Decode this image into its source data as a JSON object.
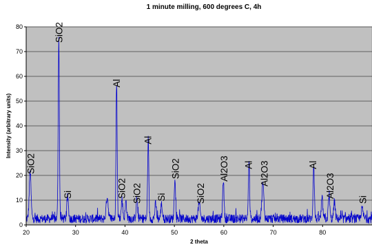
{
  "chart_data": {
    "type": "line",
    "title": "1 minute milling, 600 degrees C, 4h",
    "xlabel": "2 theta",
    "ylabel": "Intensity (arbitrary units)",
    "xlim": [
      20,
      90
    ],
    "ylim": [
      0,
      80
    ],
    "xticks": [
      20,
      30,
      40,
      50,
      60,
      70,
      80
    ],
    "yticks": [
      0,
      10,
      20,
      30,
      40,
      50,
      60,
      70,
      80
    ],
    "grid": "horizontal",
    "plot_background": "#c0c0c0",
    "line_color": "#0000cc",
    "baseline": 2.5,
    "peaks": [
      {
        "x": 20.8,
        "y": 19,
        "w": 0.18
      },
      {
        "x": 26.6,
        "y": 73,
        "w": 0.12
      },
      {
        "x": 28.4,
        "y": 9,
        "w": 0.15
      },
      {
        "x": 36.4,
        "y": 9,
        "w": 0.2
      },
      {
        "x": 38.3,
        "y": 55,
        "w": 0.12
      },
      {
        "x": 39.4,
        "y": 8,
        "w": 0.15
      },
      {
        "x": 40.2,
        "y": 7,
        "w": 0.15
      },
      {
        "x": 42.4,
        "y": 8,
        "w": 0.15
      },
      {
        "x": 44.7,
        "y": 32,
        "w": 0.12
      },
      {
        "x": 46.2,
        "y": 6,
        "w": 0.15
      },
      {
        "x": 47.4,
        "y": 6,
        "w": 0.15
      },
      {
        "x": 50.1,
        "y": 17,
        "w": 0.13
      },
      {
        "x": 55.0,
        "y": 6,
        "w": 0.2
      },
      {
        "x": 59.9,
        "y": 16,
        "w": 0.14
      },
      {
        "x": 65.1,
        "y": 22,
        "w": 0.13
      },
      {
        "x": 67.9,
        "y": 14,
        "w": 0.2
      },
      {
        "x": 78.2,
        "y": 22,
        "w": 0.13
      },
      {
        "x": 79.9,
        "y": 8,
        "w": 0.15
      },
      {
        "x": 81.3,
        "y": 9,
        "w": 0.15
      },
      {
        "x": 82.4,
        "y": 7,
        "w": 0.15
      },
      {
        "x": 88.0,
        "y": 4,
        "w": 0.2
      }
    ],
    "annotations": [
      {
        "text": "SiO2",
        "x": 20.9,
        "y": 20
      },
      {
        "text": "SiO2",
        "x": 26.6,
        "y": 73
      },
      {
        "text": "Si",
        "x": 28.4,
        "y": 10
      },
      {
        "text": "Al",
        "x": 38.3,
        "y": 55
      },
      {
        "text": "SiO2",
        "x": 39.3,
        "y": 10
      },
      {
        "text": "SiO2",
        "x": 42.4,
        "y": 8
      },
      {
        "text": "Al",
        "x": 44.6,
        "y": 32
      },
      {
        "text": "Si",
        "x": 47.3,
        "y": 9
      },
      {
        "text": "SiO2",
        "x": 50.2,
        "y": 18
      },
      {
        "text": "SiO2",
        "x": 55.3,
        "y": 8
      },
      {
        "text": "Al2O3",
        "x": 60.0,
        "y": 17
      },
      {
        "text": "Al",
        "x": 65.0,
        "y": 22
      },
      {
        "text": "Al2O3",
        "x": 68.2,
        "y": 15
      },
      {
        "text": "Al",
        "x": 78.0,
        "y": 22
      },
      {
        "text": "Al2O3",
        "x": 81.5,
        "y": 10
      },
      {
        "text": "Si",
        "x": 88.1,
        "y": 8
      }
    ]
  }
}
